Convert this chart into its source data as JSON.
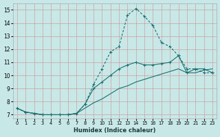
{
  "xlabel": "Humidex (Indice chaleur)",
  "bg_color": "#c8e8e8",
  "grid_color": "#c8a0a0",
  "line_color": "#1a6e6e",
  "xlim": [
    -0.5,
    23.5
  ],
  "ylim": [
    6.7,
    15.5
  ],
  "xticks": [
    0,
    1,
    2,
    3,
    4,
    5,
    6,
    7,
    8,
    9,
    10,
    11,
    12,
    13,
    14,
    15,
    16,
    17,
    18,
    19,
    20,
    21,
    22,
    23
  ],
  "yticks": [
    7,
    8,
    9,
    10,
    11,
    12,
    13,
    14,
    15
  ],
  "curve1_x": [
    0,
    1,
    2,
    3,
    4,
    5,
    6,
    7,
    8,
    9,
    10,
    11,
    12,
    13,
    14,
    15,
    16,
    17,
    18,
    19,
    20,
    21,
    22,
    23
  ],
  "curve1_y": [
    7.5,
    7.2,
    7.1,
    7.0,
    7.0,
    7.0,
    7.0,
    7.1,
    7.8,
    9.3,
    10.5,
    11.8,
    12.2,
    14.6,
    15.1,
    14.5,
    13.8,
    12.5,
    12.2,
    11.5,
    10.5,
    10.5,
    10.2,
    10.2
  ],
  "curve2_x": [
    0,
    1,
    2,
    3,
    4,
    5,
    6,
    7,
    8,
    9,
    10,
    11,
    12,
    13,
    14,
    15,
    16,
    17,
    18,
    19,
    20,
    21,
    22,
    23
  ],
  "curve2_y": [
    7.5,
    7.2,
    7.1,
    7.0,
    7.0,
    7.0,
    7.0,
    7.1,
    7.8,
    9.0,
    9.5,
    10.0,
    10.5,
    10.8,
    11.0,
    10.8,
    10.8,
    10.9,
    11.0,
    11.5,
    10.2,
    10.5,
    10.5,
    10.2
  ],
  "curve3_x": [
    0,
    1,
    2,
    3,
    4,
    5,
    6,
    7,
    8,
    9,
    10,
    11,
    12,
    13,
    14,
    15,
    16,
    17,
    18,
    19,
    20,
    21,
    22,
    23
  ],
  "curve3_y": [
    7.5,
    7.2,
    7.1,
    7.0,
    7.0,
    7.0,
    7.0,
    7.1,
    7.5,
    7.9,
    8.2,
    8.6,
    9.0,
    9.2,
    9.5,
    9.7,
    9.9,
    10.1,
    10.3,
    10.5,
    10.2,
    10.2,
    10.4,
    10.5
  ]
}
